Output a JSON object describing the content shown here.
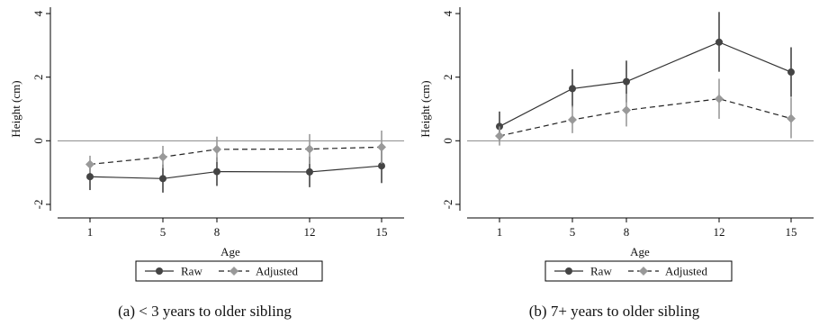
{
  "chart_data": [
    {
      "type": "line",
      "caption": "(a) < 3 years to older sibling",
      "xlabel": "Age",
      "ylabel": "Height (cm)",
      "x": [
        1,
        5,
        8,
        12,
        15
      ],
      "x_tick_labels": [
        "1",
        "5",
        "8",
        "12",
        "15"
      ],
      "ylim": [
        -2.2,
        4.2
      ],
      "y_ticks": [
        -2,
        0,
        2,
        4
      ],
      "y_tick_labels": [
        "-2",
        "0",
        "2",
        "4"
      ],
      "reference_line_y": 0,
      "legend_position": "bottom",
      "series": [
        {
          "name": "Raw",
          "color": "#444444",
          "line_style": "solid",
          "marker": "circle",
          "values": [
            -1.13,
            -1.19,
            -0.97,
            -0.98,
            -0.79
          ],
          "ci_low": [
            -1.55,
            -1.63,
            -1.42,
            -1.46,
            -1.33
          ],
          "ci_high": [
            -0.71,
            -0.75,
            -0.52,
            -0.5,
            -0.25
          ]
        },
        {
          "name": "Adjusted",
          "color": "#999999",
          "line_style": "dashed",
          "marker": "diamond",
          "values": [
            -0.74,
            -0.51,
            -0.27,
            -0.26,
            -0.2
          ],
          "ci_low": [
            -1.01,
            -0.86,
            -0.67,
            -0.73,
            -0.72
          ],
          "ci_high": [
            -0.47,
            -0.16,
            0.13,
            0.21,
            0.32
          ]
        }
      ]
    },
    {
      "type": "line",
      "caption": "(b) 7+ years to older sibling",
      "xlabel": "Age",
      "ylabel": "Height (cm)",
      "x": [
        1,
        5,
        8,
        12,
        15
      ],
      "x_tick_labels": [
        "1",
        "5",
        "8",
        "12",
        "15"
      ],
      "ylim": [
        -2.2,
        4.2
      ],
      "y_ticks": [
        -2,
        0,
        2,
        4
      ],
      "y_tick_labels": [
        "-2",
        "0",
        "2",
        "4"
      ],
      "reference_line_y": 0,
      "legend_position": "bottom",
      "series": [
        {
          "name": "Raw",
          "color": "#444444",
          "line_style": "solid",
          "marker": "circle",
          "values": [
            0.45,
            1.64,
            1.86,
            3.1,
            2.16
          ],
          "ci_low": [
            0.0,
            1.05,
            1.21,
            2.17,
            1.38
          ],
          "ci_high": [
            0.92,
            2.25,
            2.52,
            4.05,
            2.94
          ]
        },
        {
          "name": "Adjusted",
          "color": "#999999",
          "line_style": "dashed",
          "marker": "diamond",
          "values": [
            0.15,
            0.66,
            0.96,
            1.32,
            0.7
          ],
          "ci_low": [
            -0.15,
            0.24,
            0.45,
            0.69,
            0.08
          ],
          "ci_high": [
            0.45,
            1.1,
            1.48,
            1.95,
            1.36
          ]
        }
      ]
    }
  ]
}
